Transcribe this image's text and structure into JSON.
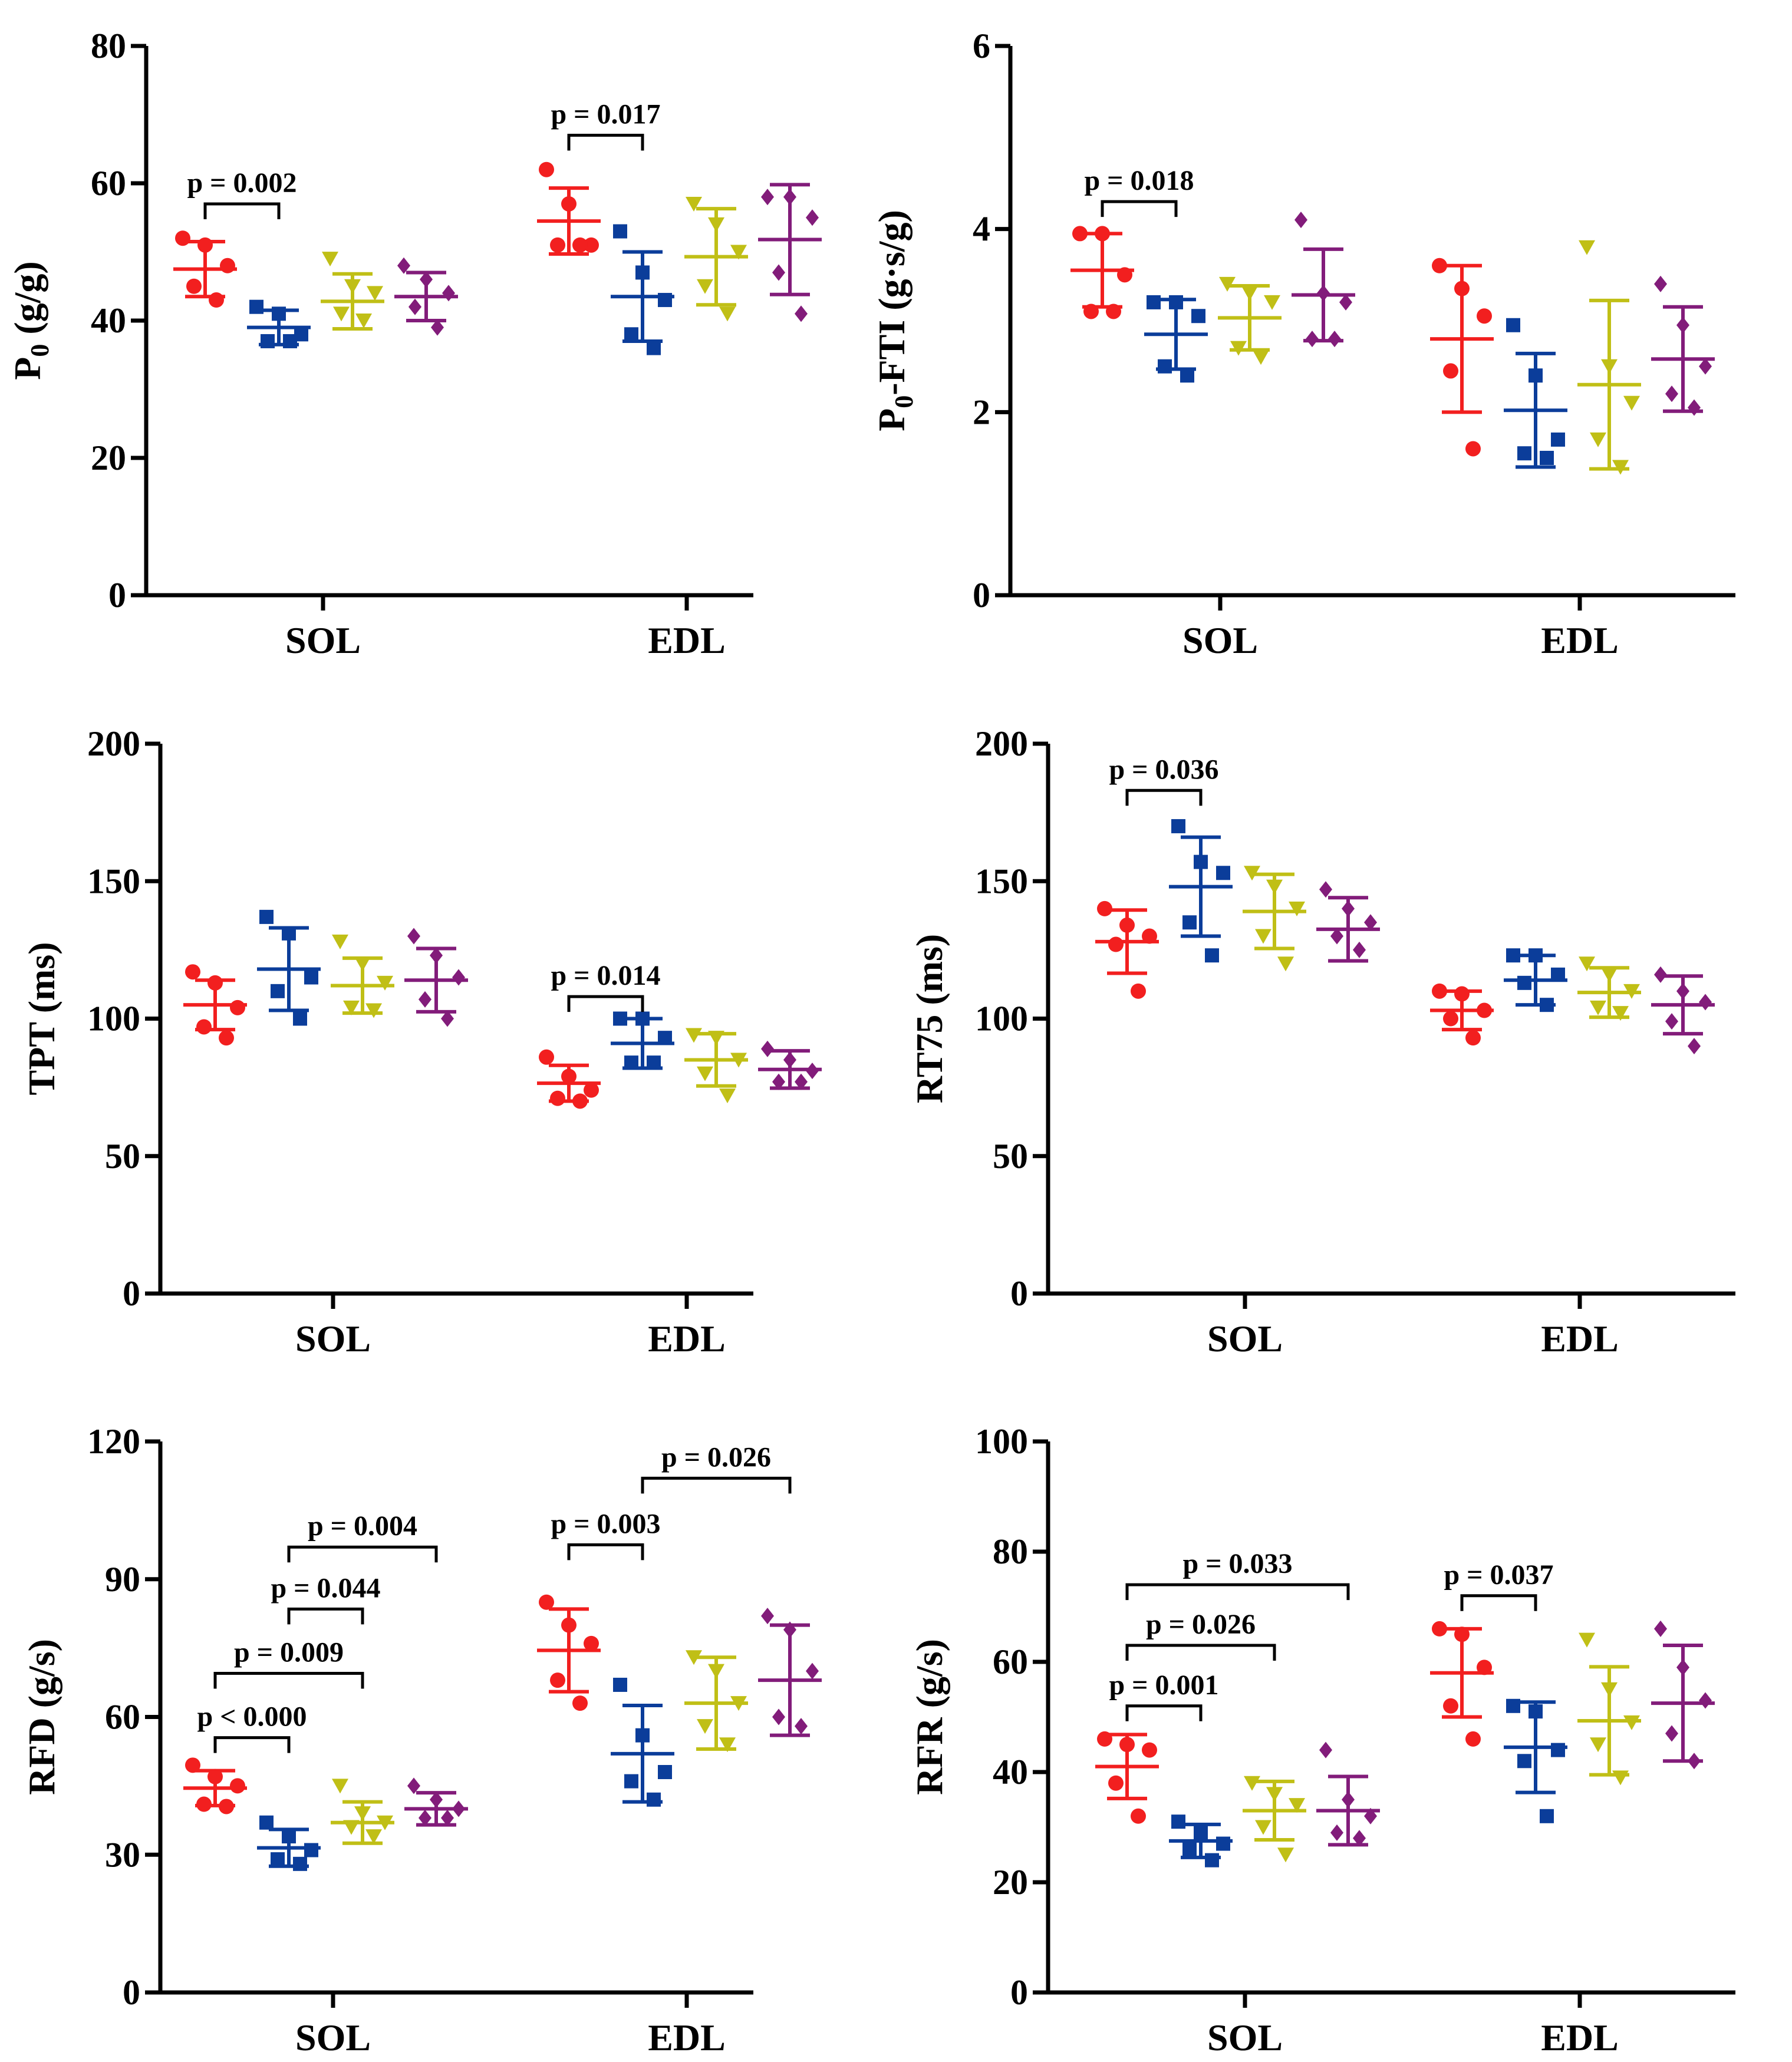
{
  "colors": {
    "g1": "#f21f1f",
    "g2": "#0b3d9a",
    "g3": "#c0bf16",
    "g4": "#821c7a",
    "axis": "#000000"
  },
  "markers": {
    "g1": "circle",
    "g2": "square",
    "g3": "triangle-down",
    "g4": "diamond"
  },
  "chart_data": [
    {
      "type": "scatter",
      "ylabel_main": "P",
      "ylabel_sub": "0",
      "ylabel_rest": " (g/g)",
      "ylim": [
        0,
        80
      ],
      "yticks": [
        "0",
        "20",
        "40",
        "60",
        "80"
      ],
      "categories": [
        "SOL",
        "EDL"
      ],
      "series": [
        {
          "group": "g1",
          "cat": "SOL",
          "points": [
            52,
            51,
            48,
            45,
            43
          ],
          "mean": 47.5,
          "sd": 4
        },
        {
          "group": "g2",
          "cat": "SOL",
          "points": [
            42,
            41,
            38,
            37,
            37
          ],
          "mean": 39,
          "sd": 2.5
        },
        {
          "group": "g3",
          "cat": "SOL",
          "points": [
            49,
            45,
            44,
            41,
            40
          ],
          "mean": 42.8,
          "sd": 4
        },
        {
          "group": "g4",
          "cat": "SOL",
          "points": [
            48,
            46,
            44,
            42,
            39
          ],
          "mean": 43.5,
          "sd": 3.5
        },
        {
          "group": "g1",
          "cat": "EDL",
          "points": [
            62,
            57,
            51,
            51,
            51
          ],
          "mean": 54.5,
          "sd": 4.8
        },
        {
          "group": "g2",
          "cat": "EDL",
          "points": [
            53,
            47,
            43,
            38,
            36
          ],
          "mean": 43.5,
          "sd": 6.5
        },
        {
          "group": "g3",
          "cat": "EDL",
          "points": [
            57,
            54,
            50,
            45,
            41
          ],
          "mean": 49.3,
          "sd": 7
        },
        {
          "group": "g4",
          "cat": "EDL",
          "points": [
            58,
            58,
            55,
            47,
            41
          ],
          "mean": 51.8,
          "sd": 8
        }
      ],
      "comparisons": [
        {
          "cat": "SOL",
          "from": 0,
          "to": 1,
          "y": 57,
          "p": "p = 0.002"
        },
        {
          "cat": "EDL",
          "from": 0,
          "to": 1,
          "y": 67,
          "p": "p = 0.017"
        }
      ]
    },
    {
      "type": "scatter",
      "ylabel_main": "P",
      "ylabel_sub": "0",
      "ylabel_rest": "-FTI  (g·s/g)",
      "ylim": [
        0,
        6
      ],
      "yticks": [
        "0",
        "2",
        "4",
        "6"
      ],
      "categories": [
        "SOL",
        "EDL"
      ],
      "series": [
        {
          "group": "g1",
          "cat": "SOL",
          "points": [
            3.95,
            3.95,
            3.5,
            3.1,
            3.1
          ],
          "mean": 3.55,
          "sd": 0.4
        },
        {
          "group": "g2",
          "cat": "SOL",
          "points": [
            3.2,
            3.2,
            3.05,
            2.5,
            2.4
          ],
          "mean": 2.85,
          "sd": 0.38
        },
        {
          "group": "g3",
          "cat": "SOL",
          "points": [
            3.4,
            3.3,
            3.2,
            2.7,
            2.6
          ],
          "mean": 3.03,
          "sd": 0.35
        },
        {
          "group": "g4",
          "cat": "SOL",
          "points": [
            4.1,
            3.3,
            3.2,
            2.8,
            2.8
          ],
          "mean": 3.28,
          "sd": 0.5
        },
        {
          "group": "g1",
          "cat": "EDL",
          "points": [
            3.6,
            3.35,
            3.05,
            2.45,
            1.6
          ],
          "mean": 2.8,
          "sd": 0.8
        },
        {
          "group": "g2",
          "cat": "EDL",
          "points": [
            2.95,
            2.4,
            1.7,
            1.55,
            1.5
          ],
          "mean": 2.02,
          "sd": 0.62
        },
        {
          "group": "g3",
          "cat": "EDL",
          "points": [
            3.8,
            2.5,
            2.1,
            1.7,
            1.4
          ],
          "mean": 2.3,
          "sd": 0.92
        },
        {
          "group": "g4",
          "cat": "EDL",
          "points": [
            3.4,
            2.95,
            2.5,
            2.2,
            2.05
          ],
          "mean": 2.58,
          "sd": 0.57
        }
      ],
      "comparisons": [
        {
          "cat": "SOL",
          "from": 0,
          "to": 1,
          "y": 4.3,
          "p": "p = 0.018"
        }
      ]
    },
    {
      "type": "scatter",
      "ylabel_main": "TPT (ms)",
      "ylabel_sub": "",
      "ylabel_rest": "",
      "ylim": [
        0,
        200
      ],
      "yticks": [
        "0",
        "50",
        "100",
        "150",
        "200"
      ],
      "categories": [
        "SOL",
        "EDL"
      ],
      "series": [
        {
          "group": "g1",
          "cat": "SOL",
          "points": [
            117,
            113,
            104,
            97,
            93
          ],
          "mean": 105,
          "sd": 9
        },
        {
          "group": "g2",
          "cat": "SOL",
          "points": [
            137,
            131,
            115,
            110,
            100
          ],
          "mean": 118,
          "sd": 15
        },
        {
          "group": "g3",
          "cat": "SOL",
          "points": [
            128,
            120,
            113,
            104,
            103
          ],
          "mean": 112,
          "sd": 10
        },
        {
          "group": "g4",
          "cat": "SOL",
          "points": [
            130,
            123,
            115,
            107,
            100
          ],
          "mean": 114,
          "sd": 11.5
        },
        {
          "group": "g1",
          "cat": "EDL",
          "points": [
            86,
            79,
            74,
            71,
            70
          ],
          "mean": 76.5,
          "sd": 6.5
        },
        {
          "group": "g2",
          "cat": "EDL",
          "points": [
            100,
            100,
            93,
            84,
            84
          ],
          "mean": 91,
          "sd": 9
        },
        {
          "group": "g3",
          "cat": "EDL",
          "points": [
            94,
            93,
            85,
            80,
            72
          ],
          "mean": 85,
          "sd": 9.5
        },
        {
          "group": "g4",
          "cat": "EDL",
          "points": [
            89,
            85,
            81,
            77,
            77
          ],
          "mean": 81.5,
          "sd": 6.8
        }
      ],
      "comparisons": [
        {
          "cat": "EDL",
          "from": 0,
          "to": 1,
          "y": 108,
          "p": "p = 0.014"
        }
      ]
    },
    {
      "type": "scatter",
      "ylabel_main": "RT75 (ms)",
      "ylabel_sub": "",
      "ylabel_rest": "",
      "ylim": [
        0,
        200
      ],
      "yticks": [
        "0",
        "50",
        "100",
        "150",
        "200"
      ],
      "categories": [
        "SOL",
        "EDL"
      ],
      "series": [
        {
          "group": "g1",
          "cat": "SOL",
          "points": [
            140,
            134,
            130,
            127,
            110
          ],
          "mean": 128,
          "sd": 11.5
        },
        {
          "group": "g2",
          "cat": "SOL",
          "points": [
            170,
            157,
            153,
            135,
            123
          ],
          "mean": 148,
          "sd": 18
        },
        {
          "group": "g3",
          "cat": "SOL",
          "points": [
            153,
            148,
            140,
            130,
            120
          ],
          "mean": 139,
          "sd": 13.5
        },
        {
          "group": "g4",
          "cat": "SOL",
          "points": [
            147,
            140,
            135,
            130,
            125
          ],
          "mean": 132.5,
          "sd": 11.5
        },
        {
          "group": "g1",
          "cat": "EDL",
          "points": [
            110,
            109,
            103,
            100,
            93
          ],
          "mean": 103,
          "sd": 7
        },
        {
          "group": "g2",
          "cat": "EDL",
          "points": [
            123,
            123,
            116,
            113,
            105
          ],
          "mean": 114,
          "sd": 9
        },
        {
          "group": "g3",
          "cat": "EDL",
          "points": [
            120,
            116,
            110,
            104,
            102
          ],
          "mean": 109.5,
          "sd": 9
        },
        {
          "group": "g4",
          "cat": "EDL",
          "points": [
            116,
            110,
            106,
            99,
            90
          ],
          "mean": 105,
          "sd": 10.5
        }
      ],
      "comparisons": [
        {
          "cat": "SOL",
          "from": 0,
          "to": 1,
          "y": 183,
          "p": "p = 0.036"
        }
      ]
    },
    {
      "type": "scatter",
      "ylabel_main": "RFD (g/s)",
      "ylabel_sub": "",
      "ylabel_rest": "",
      "ylim": [
        0,
        120
      ],
      "yticks": [
        "0",
        "30",
        "60",
        "90",
        "120"
      ],
      "categories": [
        "SOL",
        "EDL"
      ],
      "series": [
        {
          "group": "g1",
          "cat": "SOL",
          "points": [
            49.5,
            47,
            45,
            41,
            40.5
          ],
          "mean": 44.5,
          "sd": 3.8
        },
        {
          "group": "g2",
          "cat": "SOL",
          "points": [
            37,
            34,
            31,
            29,
            28
          ],
          "mean": 31.5,
          "sd": 4
        },
        {
          "group": "g3",
          "cat": "SOL",
          "points": [
            45,
            39,
            37,
            36,
            34
          ],
          "mean": 37,
          "sd": 4.5
        },
        {
          "group": "g4",
          "cat": "SOL",
          "points": [
            45,
            42,
            40,
            38,
            38
          ],
          "mean": 40,
          "sd": 3.5
        },
        {
          "group": "g1",
          "cat": "EDL",
          "points": [
            85,
            80,
            76,
            68,
            63
          ],
          "mean": 74.5,
          "sd": 9
        },
        {
          "group": "g2",
          "cat": "EDL",
          "points": [
            67,
            56,
            48,
            46,
            42
          ],
          "mean": 52,
          "sd": 10.5
        },
        {
          "group": "g3",
          "cat": "EDL",
          "points": [
            73,
            70,
            63,
            58,
            54
          ],
          "mean": 63,
          "sd": 10
        },
        {
          "group": "g4",
          "cat": "EDL",
          "points": [
            82,
            79,
            70,
            60,
            58
          ],
          "mean": 68,
          "sd": 12
        }
      ],
      "comparisons": [
        {
          "cat": "SOL",
          "from": 0,
          "to": 1,
          "y": 55.5,
          "p": "p < 0.000"
        },
        {
          "cat": "SOL",
          "from": 0,
          "to": 2,
          "y": 69.5,
          "p": "p = 0.009"
        },
        {
          "cat": "SOL",
          "from": 1,
          "to": 2,
          "y": 83.5,
          "p": "p = 0.044"
        },
        {
          "cat": "SOL",
          "from": 1,
          "to": 3,
          "y": 97,
          "p": "p = 0.004"
        },
        {
          "cat": "EDL",
          "from": 0,
          "to": 1,
          "y": 97.5,
          "p": "p = 0.003"
        },
        {
          "cat": "EDL",
          "from": 1,
          "to": 3,
          "y": 112,
          "p": "p = 0.026"
        }
      ]
    },
    {
      "type": "scatter",
      "ylabel_main": "RFR (g/s)",
      "ylabel_sub": "",
      "ylabel_rest": "",
      "ylim": [
        0,
        100
      ],
      "yticks": [
        "0",
        "20",
        "40",
        "60",
        "80",
        "100"
      ],
      "categories": [
        "SOL",
        "EDL"
      ],
      "series": [
        {
          "group": "g1",
          "cat": "SOL",
          "points": [
            46,
            45,
            44,
            38,
            32
          ],
          "mean": 41,
          "sd": 5.8
        },
        {
          "group": "g2",
          "cat": "SOL",
          "points": [
            31,
            29,
            27,
            26,
            24
          ],
          "mean": 27.5,
          "sd": 3
        },
        {
          "group": "g3",
          "cat": "SOL",
          "points": [
            38,
            36,
            34,
            30,
            25
          ],
          "mean": 33,
          "sd": 5.3
        },
        {
          "group": "g4",
          "cat": "SOL",
          "points": [
            44,
            35,
            32,
            29,
            28
          ],
          "mean": 33,
          "sd": 6.2
        },
        {
          "group": "g1",
          "cat": "EDL",
          "points": [
            66,
            65,
            59,
            52,
            46
          ],
          "mean": 58,
          "sd": 8
        },
        {
          "group": "g2",
          "cat": "EDL",
          "points": [
            52,
            51,
            44,
            42,
            32
          ],
          "mean": 44.5,
          "sd": 8.2
        },
        {
          "group": "g3",
          "cat": "EDL",
          "points": [
            64,
            55,
            49,
            45,
            39
          ],
          "mean": 49.3,
          "sd": 9.8
        },
        {
          "group": "g4",
          "cat": "EDL",
          "points": [
            66,
            59,
            53,
            47,
            42
          ],
          "mean": 52.5,
          "sd": 10.5
        }
      ],
      "comparisons": [
        {
          "cat": "SOL",
          "from": 0,
          "to": 1,
          "y": 52,
          "p": "p = 0.001"
        },
        {
          "cat": "SOL",
          "from": 0,
          "to": 2,
          "y": 63,
          "p": "p = 0.026"
        },
        {
          "cat": "SOL",
          "from": 0,
          "to": 3,
          "y": 74,
          "p": "p = 0.033"
        },
        {
          "cat": "EDL",
          "from": 0,
          "to": 1,
          "y": 72,
          "p": "p = 0.037"
        }
      ]
    }
  ]
}
